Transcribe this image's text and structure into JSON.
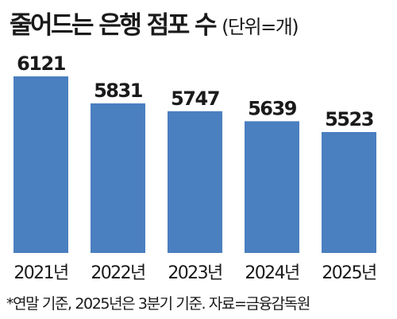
{
  "chart_data": {
    "type": "bar",
    "title": "줄어드는 은행 점포 수",
    "unit_label": "(단위=개)",
    "categories": [
      "2021년",
      "2022년",
      "2023년",
      "2024년",
      "2025년"
    ],
    "values": [
      6121,
      5831,
      5747,
      5639,
      5523
    ],
    "bar_color": "#4a7fc0",
    "grid": false,
    "footnote": "*연말 기준, 2025년은 3분기 기준. 자료=금융감독원"
  }
}
